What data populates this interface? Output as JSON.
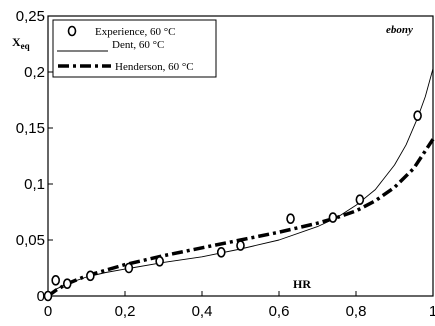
{
  "chart_data": {
    "type": "line",
    "title": "",
    "annotation": "ebony",
    "xlabel": "HR",
    "ylabel_main": "X",
    "ylabel_sub": "eq",
    "xlim": [
      0,
      1
    ],
    "ylim": [
      0,
      0.25
    ],
    "xticks": [
      {
        "value": 0,
        "label": "0"
      },
      {
        "value": 0.2,
        "label": "0,2"
      },
      {
        "value": 0.4,
        "label": "0,4"
      },
      {
        "value": 0.6,
        "label": "0,6"
      },
      {
        "value": 0.8,
        "label": "0,8"
      },
      {
        "value": 1,
        "label": "1"
      }
    ],
    "yticks": [
      {
        "value": 0,
        "label": "0"
      },
      {
        "value": 0.05,
        "label": "0,05"
      },
      {
        "value": 0.1,
        "label": "0,1"
      },
      {
        "value": 0.15,
        "label": "0,15"
      },
      {
        "value": 0.2,
        "label": "0,2"
      },
      {
        "value": 0.25,
        "label": "0,25"
      }
    ],
    "grid": false,
    "legend_position": "top-left",
    "series": [
      {
        "name": "Experience, 60 °C",
        "style": "markers",
        "x": [
          0.0,
          0.02,
          0.05,
          0.11,
          0.21,
          0.29,
          0.45,
          0.5,
          0.63,
          0.74,
          0.81,
          0.96
        ],
        "y": [
          0.0,
          0.014,
          0.011,
          0.018,
          0.025,
          0.031,
          0.039,
          0.045,
          0.069,
          0.07,
          0.086,
          0.161
        ]
      },
      {
        "name": "Dent, 60 °C",
        "style": "thin-line",
        "x": [
          0,
          0.02,
          0.05,
          0.1,
          0.15,
          0.2,
          0.3,
          0.4,
          0.5,
          0.6,
          0.7,
          0.75,
          0.8,
          0.85,
          0.9,
          0.93,
          0.96,
          0.98,
          1.0
        ],
        "y": [
          0.0,
          0.006,
          0.011,
          0.017,
          0.021,
          0.024,
          0.03,
          0.035,
          0.042,
          0.05,
          0.062,
          0.07,
          0.081,
          0.095,
          0.117,
          0.135,
          0.159,
          0.178,
          0.203
        ]
      },
      {
        "name": "Henderson, 60 °C",
        "style": "dash-dot",
        "x": [
          0,
          0.02,
          0.05,
          0.1,
          0.15,
          0.2,
          0.3,
          0.4,
          0.5,
          0.6,
          0.7,
          0.75,
          0.8,
          0.85,
          0.9,
          0.95,
          1.0
        ],
        "y": [
          0.0,
          0.005,
          0.011,
          0.018,
          0.023,
          0.028,
          0.036,
          0.043,
          0.05,
          0.057,
          0.065,
          0.07,
          0.076,
          0.085,
          0.097,
          0.114,
          0.14
        ]
      }
    ],
    "colors": {
      "axis": "#000000",
      "series": "#000000",
      "background": "#ffffff"
    }
  }
}
